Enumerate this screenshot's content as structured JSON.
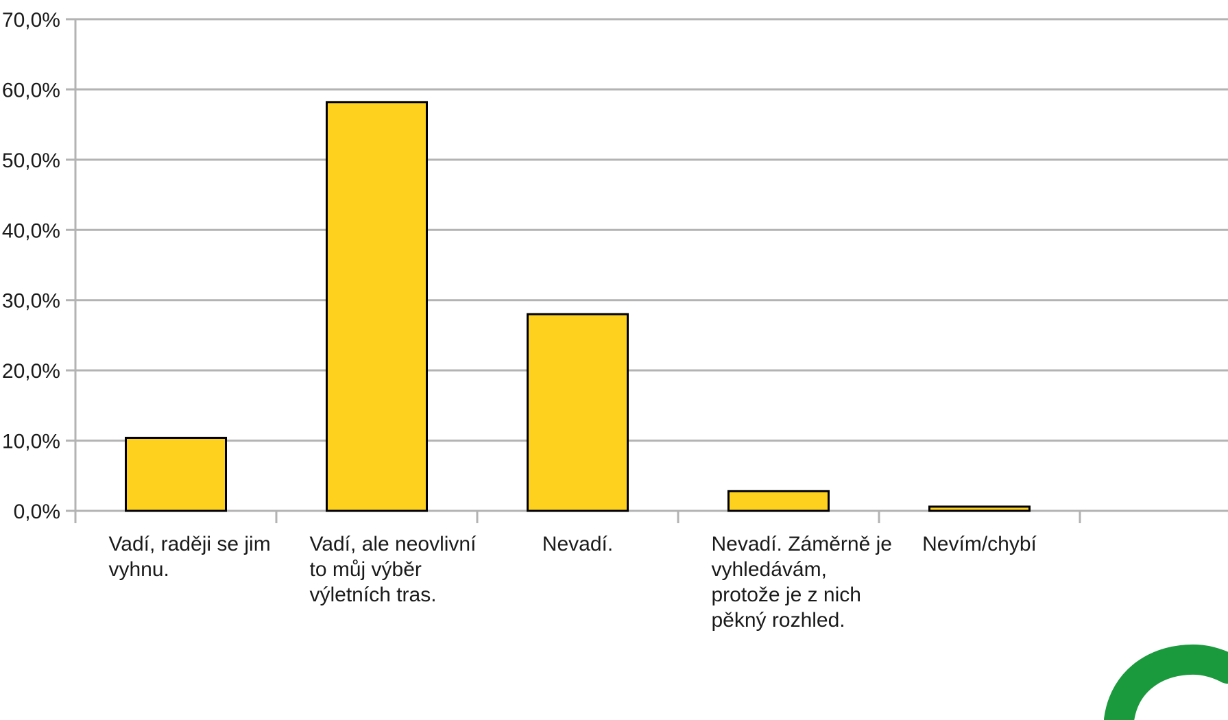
{
  "chart_data": {
    "type": "bar",
    "title": "",
    "xlabel": "",
    "ylabel": "",
    "categories": [
      [
        "Vadí, raději se jim",
        "vyhnu."
      ],
      [
        "Vadí, ale neovlivní",
        "to můj výběr",
        "výletních tras."
      ],
      [
        "Nevadí."
      ],
      [
        "Nevadí. Záměrně je",
        "vyhledávám,",
        "protože je z nich",
        "pěkný rozhled."
      ],
      [
        "Nevím/chybí"
      ]
    ],
    "values": [
      10.4,
      58.2,
      28.0,
      2.8,
      0.6
    ],
    "ylim": [
      0,
      70
    ],
    "yticks": [
      "0,0%",
      "10,0%",
      "20,0%",
      "30,0%",
      "40,0%",
      "50,0%",
      "60,0%",
      "70,0%"
    ],
    "grid": true,
    "legend": "none",
    "bar_color": "#fdd11e",
    "bar_stroke": "#000000",
    "grid_color": "#b3b3b3",
    "axis_color": "#b3b3b3",
    "logo": {
      "icon": "green-circle-logo-icon",
      "color": "#1a9a3d"
    }
  }
}
